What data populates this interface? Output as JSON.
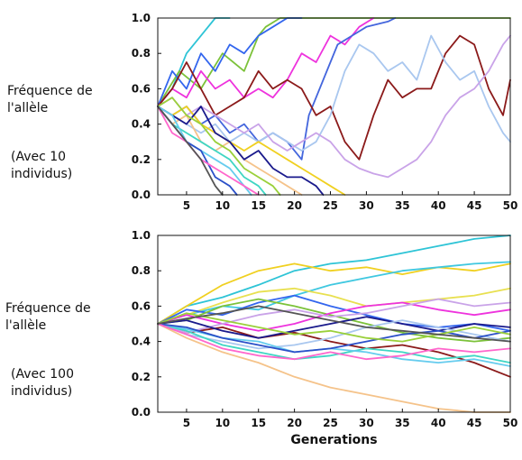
{
  "chart_data": [
    {
      "type": "line",
      "ylabel": "Fréquence de l'allèle",
      "subtitle": "(Avec 10 individus)",
      "xlabel": "",
      "xlim": [
        1,
        50
      ],
      "ylim": [
        0,
        1
      ],
      "xticks": [
        "5",
        "10",
        "15",
        "20",
        "25",
        "30",
        "35",
        "40",
        "45",
        "50"
      ],
      "yticks": [
        "0.0",
        "0.2",
        "0.4",
        "0.6",
        "0.8",
        "1.0"
      ],
      "grid": false,
      "series": [
        {
          "color": "#2ec4d6",
          "x": [
            1,
            3,
            5,
            7,
            9,
            11
          ],
          "y": [
            0.5,
            0.6,
            0.8,
            0.9,
            1.0,
            1.0
          ]
        },
        {
          "color": "#7cc23a",
          "x": [
            1,
            4,
            7,
            10,
            13,
            15,
            16,
            18,
            20,
            50
          ],
          "y": [
            0.5,
            0.7,
            0.6,
            0.8,
            0.7,
            0.9,
            0.95,
            1.0,
            1.0,
            1.0
          ]
        },
        {
          "color": "#3366ee",
          "x": [
            1,
            3,
            5,
            7,
            9,
            11,
            13,
            15,
            17,
            19,
            21
          ],
          "y": [
            0.5,
            0.7,
            0.6,
            0.8,
            0.7,
            0.85,
            0.8,
            0.9,
            0.95,
            1.0,
            1.0
          ]
        },
        {
          "color": "#ee33dd",
          "x": [
            1,
            3,
            5,
            7,
            9,
            11,
            13,
            15,
            17,
            19,
            21,
            23,
            25,
            27,
            29,
            31
          ],
          "y": [
            0.5,
            0.6,
            0.55,
            0.7,
            0.6,
            0.65,
            0.55,
            0.6,
            0.55,
            0.65,
            0.8,
            0.75,
            0.9,
            0.85,
            0.95,
            1.0
          ]
        },
        {
          "color": "#4466dd",
          "x": [
            1,
            3,
            5,
            7,
            9,
            11,
            13,
            15,
            17,
            19,
            21,
            22,
            24,
            26,
            28,
            30,
            33,
            34
          ],
          "y": [
            0.5,
            0.45,
            0.5,
            0.4,
            0.45,
            0.35,
            0.4,
            0.3,
            0.35,
            0.3,
            0.2,
            0.45,
            0.65,
            0.85,
            0.9,
            0.95,
            0.98,
            1.0
          ]
        },
        {
          "color": "#8b1a1a",
          "x": [
            1,
            3,
            5,
            7,
            9,
            11,
            13,
            15,
            17,
            19,
            21,
            23,
            25,
            27,
            29,
            31,
            33,
            35,
            37,
            39,
            41,
            43,
            45,
            47,
            49,
            50
          ],
          "y": [
            0.5,
            0.6,
            0.75,
            0.6,
            0.45,
            0.5,
            0.55,
            0.7,
            0.6,
            0.65,
            0.6,
            0.45,
            0.5,
            0.3,
            0.2,
            0.45,
            0.65,
            0.55,
            0.6,
            0.6,
            0.8,
            0.9,
            0.85,
            0.6,
            0.45,
            0.65
          ]
        },
        {
          "color": "#a9c7ef",
          "x": [
            1,
            3,
            5,
            7,
            9,
            11,
            13,
            15,
            17,
            19,
            21,
            23,
            25,
            27,
            29,
            31,
            33,
            35,
            37,
            39,
            41,
            43,
            45,
            47,
            49,
            50
          ],
          "y": [
            0.5,
            0.45,
            0.4,
            0.35,
            0.4,
            0.3,
            0.35,
            0.3,
            0.35,
            0.3,
            0.25,
            0.3,
            0.45,
            0.7,
            0.85,
            0.8,
            0.7,
            0.75,
            0.65,
            0.9,
            0.75,
            0.65,
            0.7,
            0.5,
            0.35,
            0.3
          ]
        },
        {
          "color": "#c9a3e8",
          "x": [
            1,
            3,
            5,
            7,
            9,
            11,
            13,
            15,
            17,
            19,
            21,
            23,
            25,
            27,
            29,
            31,
            33,
            35,
            37,
            39,
            41,
            43,
            45,
            47,
            49,
            50
          ],
          "y": [
            0.5,
            0.55,
            0.45,
            0.5,
            0.45,
            0.4,
            0.35,
            0.4,
            0.3,
            0.25,
            0.3,
            0.35,
            0.3,
            0.2,
            0.15,
            0.12,
            0.1,
            0.15,
            0.2,
            0.3,
            0.45,
            0.55,
            0.6,
            0.7,
            0.85,
            0.9
          ]
        },
        {
          "color": "#f0d020",
          "x": [
            1,
            3,
            5,
            7,
            9,
            11,
            13,
            15,
            17,
            19,
            21,
            23,
            25,
            27
          ],
          "y": [
            0.5,
            0.45,
            0.5,
            0.4,
            0.35,
            0.3,
            0.25,
            0.3,
            0.25,
            0.2,
            0.15,
            0.1,
            0.05,
            0.0
          ]
        },
        {
          "color": "#f5c38a",
          "x": [
            1,
            3,
            5,
            7,
            9,
            11,
            13,
            15,
            17,
            19,
            21
          ],
          "y": [
            0.5,
            0.4,
            0.45,
            0.3,
            0.25,
            0.3,
            0.2,
            0.15,
            0.1,
            0.05,
            0.0
          ]
        },
        {
          "color": "#1a1a8c",
          "x": [
            1,
            3,
            5,
            7,
            9,
            11,
            13,
            15,
            17,
            19,
            21,
            23,
            24
          ],
          "y": [
            0.5,
            0.45,
            0.4,
            0.5,
            0.35,
            0.3,
            0.2,
            0.25,
            0.15,
            0.1,
            0.1,
            0.05,
            0.0
          ]
        },
        {
          "color": "#9ad03a",
          "x": [
            1,
            3,
            5,
            7,
            9,
            11,
            13,
            15,
            17,
            18
          ],
          "y": [
            0.5,
            0.55,
            0.45,
            0.4,
            0.3,
            0.25,
            0.15,
            0.1,
            0.05,
            0.0
          ]
        },
        {
          "color": "#3fd6c4",
          "x": [
            1,
            3,
            5,
            7,
            9,
            11,
            13,
            15,
            16
          ],
          "y": [
            0.5,
            0.4,
            0.35,
            0.3,
            0.25,
            0.2,
            0.1,
            0.05,
            0.0
          ]
        },
        {
          "color": "#66ccee",
          "x": [
            1,
            3,
            5,
            7,
            9,
            11,
            13,
            14
          ],
          "y": [
            0.5,
            0.45,
            0.3,
            0.25,
            0.2,
            0.15,
            0.05,
            0.0
          ]
        },
        {
          "color": "#2b50c8",
          "x": [
            1,
            3,
            5,
            7,
            9,
            11,
            12
          ],
          "y": [
            0.5,
            0.4,
            0.3,
            0.25,
            0.1,
            0.05,
            0.0
          ]
        },
        {
          "color": "#ff66cc",
          "x": [
            1,
            3,
            5,
            7,
            9,
            11,
            13,
            15
          ],
          "y": [
            0.5,
            0.35,
            0.3,
            0.2,
            0.15,
            0.1,
            0.05,
            0.0
          ]
        },
        {
          "color": "#555555",
          "x": [
            1,
            3,
            5,
            7,
            9,
            10
          ],
          "y": [
            0.5,
            0.4,
            0.3,
            0.2,
            0.05,
            0.0
          ]
        }
      ]
    },
    {
      "type": "line",
      "ylabel": "Fréquence de l'allèle",
      "subtitle": "(Avec 100 individus)",
      "xlabel": "Generations",
      "xlim": [
        1,
        50
      ],
      "ylim": [
        0,
        1
      ],
      "xticks": [
        "5",
        "10",
        "15",
        "20",
        "25",
        "30",
        "35",
        "40",
        "45",
        "50"
      ],
      "yticks": [
        "0.0",
        "0.2",
        "0.4",
        "0.6",
        "0.8",
        "1.0"
      ],
      "grid": false,
      "series": [
        {
          "color": "#2ec4d6",
          "x": [
            1,
            5,
            10,
            15,
            20,
            25,
            30,
            35,
            40,
            45,
            50
          ],
          "y": [
            0.5,
            0.6,
            0.65,
            0.72,
            0.8,
            0.84,
            0.86,
            0.9,
            0.94,
            0.98,
            1.0
          ]
        },
        {
          "color": "#f0d020",
          "x": [
            1,
            5,
            10,
            15,
            20,
            25,
            30,
            35,
            40,
            45,
            50
          ],
          "y": [
            0.5,
            0.6,
            0.72,
            0.8,
            0.84,
            0.8,
            0.82,
            0.78,
            0.82,
            0.8,
            0.84
          ]
        },
        {
          "color": "#40c8e0",
          "x": [
            1,
            5,
            10,
            15,
            20,
            25,
            30,
            35,
            40,
            45,
            50
          ],
          "y": [
            0.5,
            0.55,
            0.6,
            0.58,
            0.66,
            0.72,
            0.76,
            0.8,
            0.82,
            0.84,
            0.85
          ]
        },
        {
          "color": "#e8e050",
          "x": [
            1,
            5,
            10,
            15,
            20,
            25,
            30,
            35,
            40,
            45,
            50
          ],
          "y": [
            0.5,
            0.55,
            0.62,
            0.68,
            0.7,
            0.66,
            0.6,
            0.62,
            0.64,
            0.66,
            0.7
          ]
        },
        {
          "color": "#3366ee",
          "x": [
            1,
            5,
            10,
            15,
            20,
            25,
            30,
            35,
            40,
            45,
            50
          ],
          "y": [
            0.5,
            0.58,
            0.55,
            0.62,
            0.66,
            0.6,
            0.55,
            0.5,
            0.48,
            0.5,
            0.46
          ]
        },
        {
          "color": "#8b1a1a",
          "x": [
            1,
            5,
            10,
            15,
            20,
            25,
            30,
            35,
            40,
            45,
            50
          ],
          "y": [
            0.5,
            0.45,
            0.48,
            0.42,
            0.45,
            0.4,
            0.36,
            0.38,
            0.34,
            0.28,
            0.2
          ]
        },
        {
          "color": "#7cc23a",
          "x": [
            1,
            5,
            10,
            15,
            20,
            25,
            30,
            35,
            40,
            45,
            50
          ],
          "y": [
            0.5,
            0.52,
            0.6,
            0.64,
            0.6,
            0.55,
            0.5,
            0.45,
            0.42,
            0.4,
            0.42
          ]
        },
        {
          "color": "#ee33dd",
          "x": [
            1,
            5,
            10,
            15,
            20,
            25,
            30,
            35,
            40,
            45,
            50
          ],
          "y": [
            0.5,
            0.55,
            0.5,
            0.46,
            0.5,
            0.56,
            0.6,
            0.62,
            0.58,
            0.55,
            0.58
          ]
        },
        {
          "color": "#c9a3e8",
          "x": [
            1,
            5,
            10,
            15,
            20,
            25,
            30,
            35,
            40,
            45,
            50
          ],
          "y": [
            0.5,
            0.45,
            0.5,
            0.55,
            0.58,
            0.54,
            0.56,
            0.6,
            0.64,
            0.6,
            0.62
          ]
        },
        {
          "color": "#1a1a8c",
          "x": [
            1,
            5,
            10,
            15,
            20,
            25,
            30,
            35,
            40,
            45,
            50
          ],
          "y": [
            0.5,
            0.52,
            0.46,
            0.42,
            0.46,
            0.5,
            0.54,
            0.5,
            0.46,
            0.5,
            0.48
          ]
        },
        {
          "color": "#a9c7ef",
          "x": [
            1,
            5,
            10,
            15,
            20,
            25,
            30,
            35,
            40,
            45,
            50
          ],
          "y": [
            0.5,
            0.44,
            0.4,
            0.36,
            0.38,
            0.42,
            0.48,
            0.52,
            0.48,
            0.44,
            0.4
          ]
        },
        {
          "color": "#3fd6c4",
          "x": [
            1,
            5,
            10,
            15,
            20,
            25,
            30,
            35,
            40,
            45,
            50
          ],
          "y": [
            0.5,
            0.46,
            0.38,
            0.34,
            0.3,
            0.32,
            0.36,
            0.34,
            0.3,
            0.32,
            0.28
          ]
        },
        {
          "color": "#f5c38a",
          "x": [
            1,
            5,
            10,
            15,
            20,
            25,
            30,
            35,
            40,
            45,
            50
          ],
          "y": [
            0.5,
            0.42,
            0.34,
            0.28,
            0.2,
            0.14,
            0.1,
            0.06,
            0.02,
            0.0,
            0.0
          ]
        },
        {
          "color": "#66ccee",
          "x": [
            1,
            5,
            10,
            15,
            20,
            25,
            30,
            35,
            40,
            45,
            50
          ],
          "y": [
            0.5,
            0.47,
            0.42,
            0.4,
            0.34,
            0.36,
            0.34,
            0.3,
            0.28,
            0.3,
            0.26
          ]
        },
        {
          "color": "#2b50c8",
          "x": [
            1,
            5,
            10,
            15,
            20,
            25,
            30,
            35,
            40,
            45,
            50
          ],
          "y": [
            0.5,
            0.48,
            0.42,
            0.38,
            0.34,
            0.36,
            0.4,
            0.44,
            0.46,
            0.42,
            0.46
          ]
        },
        {
          "color": "#ff66cc",
          "x": [
            1,
            5,
            10,
            15,
            20,
            25,
            30,
            35,
            40,
            45,
            50
          ],
          "y": [
            0.5,
            0.44,
            0.36,
            0.32,
            0.3,
            0.34,
            0.3,
            0.32,
            0.36,
            0.34,
            0.36
          ]
        },
        {
          "color": "#9ad03a",
          "x": [
            1,
            5,
            10,
            15,
            20,
            25,
            30,
            35,
            40,
            45,
            50
          ],
          "y": [
            0.5,
            0.56,
            0.52,
            0.48,
            0.44,
            0.46,
            0.42,
            0.4,
            0.44,
            0.48,
            0.44
          ]
        },
        {
          "color": "#555555",
          "x": [
            1,
            5,
            10,
            15,
            20,
            25,
            30,
            35,
            40,
            45,
            50
          ],
          "y": [
            0.5,
            0.53,
            0.56,
            0.6,
            0.56,
            0.52,
            0.48,
            0.46,
            0.44,
            0.42,
            0.4
          ]
        }
      ]
    }
  ]
}
